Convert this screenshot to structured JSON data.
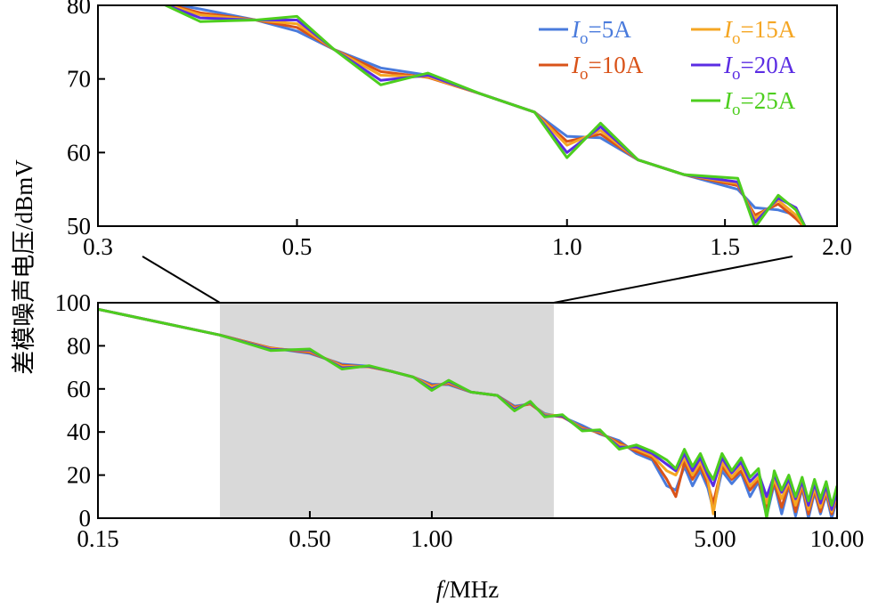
{
  "figure": {
    "ylabel": "差模噪声电压/dBmV",
    "xlabel_italic": "f",
    "xlabel_rest": "/MHz"
  },
  "chart_data": [
    {
      "id": "zoom",
      "type": "line",
      "xscale": "log",
      "xlim": [
        0.3,
        2.0
      ],
      "ylim": [
        50,
        80
      ],
      "x_ticks": [
        0.3,
        0.5,
        1.0,
        1.5,
        2.0
      ],
      "x_tick_labels": [
        "0.3",
        "0.5",
        "1.0",
        "1.5",
        "2.0"
      ],
      "y_ticks": [
        50,
        60,
        70,
        80
      ],
      "y_tick_labels": [
        "50",
        "60",
        "70",
        "80"
      ],
      "x": [
        0.35,
        0.39,
        0.45,
        0.5,
        0.55,
        0.62,
        0.7,
        0.8,
        0.92,
        1.0,
        1.09,
        1.2,
        1.35,
        1.55,
        1.62,
        1.72,
        1.8,
        1.85
      ],
      "series": [
        {
          "name": "5A",
          "color": "#4a7bdc",
          "values": [
            80.5,
            79.5,
            78,
            76.5,
            74,
            71.5,
            70.5,
            68,
            65.5,
            62.2,
            62,
            59,
            57,
            55,
            52.5,
            52.2,
            51.5,
            49.5
          ]
        },
        {
          "name": "10A",
          "color": "#d95319",
          "values": [
            80.5,
            79,
            78,
            77,
            74,
            71,
            70.2,
            68,
            65.5,
            61.5,
            62.5,
            59,
            57,
            55.5,
            51.5,
            53,
            51,
            49.5
          ]
        },
        {
          "name": "15A",
          "color": "#f5a623",
          "values": [
            80.5,
            78.7,
            78,
            77.5,
            74,
            70.5,
            70.3,
            68,
            65.5,
            61,
            63,
            59,
            57,
            55.8,
            51,
            53.5,
            51.5,
            49.5
          ]
        },
        {
          "name": "20A",
          "color": "#5b2de3",
          "values": [
            80.5,
            78.3,
            78,
            78,
            74,
            69.8,
            70.5,
            68,
            65.5,
            60,
            63.5,
            59,
            57,
            56,
            50.5,
            53.8,
            52.5,
            49.5
          ]
        },
        {
          "name": "25A",
          "color": "#4dce1e",
          "values": [
            80.5,
            77.8,
            78,
            78.5,
            74,
            69.2,
            70.8,
            68,
            65.5,
            59.3,
            64,
            59,
            57,
            56.5,
            49.8,
            54.2,
            52.2,
            49.5
          ]
        }
      ]
    },
    {
      "id": "full",
      "type": "line",
      "xscale": "log",
      "xlim": [
        0.15,
        10.0
      ],
      "ylim": [
        0,
        100
      ],
      "x_ticks": [
        0.15,
        0.5,
        1.0,
        5.0,
        10.0
      ],
      "x_tick_labels": [
        "0.15",
        "0.50",
        "1.00",
        "5.00",
        "10.00"
      ],
      "y_ticks": [
        0,
        20,
        40,
        60,
        80,
        100
      ],
      "y_tick_labels": [
        "0",
        "20",
        "40",
        "60",
        "80",
        "100"
      ],
      "highlight_range": [
        0.3,
        2.0
      ],
      "x": [
        0.15,
        0.2,
        0.3,
        0.4,
        0.5,
        0.6,
        0.7,
        0.8,
        0.9,
        1.0,
        1.1,
        1.25,
        1.45,
        1.6,
        1.75,
        1.9,
        2.1,
        2.35,
        2.6,
        2.9,
        3.2,
        3.5,
        3.8,
        4.0,
        4.2,
        4.4,
        4.6,
        4.8,
        4.95,
        5.2,
        5.5,
        5.8,
        6.1,
        6.4,
        6.7,
        7.0,
        7.3,
        7.6,
        7.9,
        8.2,
        8.5,
        8.8,
        9.1,
        9.4,
        9.7,
        10.0
      ],
      "series": [
        {
          "name": "5A",
          "color": "#4a7bdc",
          "values": [
            97,
            92,
            85,
            79,
            76.5,
            71.5,
            70.5,
            68,
            65.5,
            62.2,
            62,
            58.5,
            57,
            52,
            53,
            48.5,
            47,
            43,
            39,
            36,
            30,
            27,
            15,
            13,
            24,
            15,
            22,
            14,
            4,
            22,
            16,
            21,
            10,
            17,
            1,
            16,
            2,
            15,
            1,
            14,
            0,
            12,
            2,
            11,
            0,
            9
          ]
        },
        {
          "name": "10A",
          "color": "#d95319",
          "values": [
            97,
            92,
            85,
            79,
            77,
            71,
            70.2,
            68,
            65.5,
            61.5,
            62.5,
            58.5,
            57,
            51.5,
            53,
            48,
            47,
            42,
            39.5,
            35,
            31,
            28,
            18,
            10,
            26,
            18,
            24,
            16,
            7,
            24,
            18,
            22,
            13,
            18,
            4,
            17,
            5,
            16,
            3,
            15,
            2,
            13,
            3,
            12,
            2,
            10
          ]
        },
        {
          "name": "15A",
          "color": "#f5a623",
          "values": [
            97,
            92,
            85,
            78.7,
            77.5,
            70.5,
            70.3,
            68,
            65.5,
            61,
            63,
            58.5,
            57,
            51,
            53.5,
            48,
            47.5,
            41.5,
            40,
            34,
            32,
            29,
            22,
            20,
            28,
            20,
            26,
            18,
            2,
            26,
            19,
            24,
            15,
            19,
            7,
            18,
            9,
            17,
            6,
            16,
            4,
            14,
            5,
            13,
            3,
            11
          ]
        },
        {
          "name": "20A",
          "color": "#5b2de3",
          "values": [
            97,
            92,
            85,
            78.3,
            78,
            69.8,
            70.5,
            68,
            65.5,
            60,
            63.5,
            58.5,
            57,
            50.5,
            53.8,
            47.5,
            47.5,
            41,
            40.5,
            33,
            33,
            30,
            25,
            22,
            30,
            22,
            28,
            20,
            15,
            28,
            21,
            26,
            17,
            21,
            10,
            20,
            12,
            18,
            9,
            17,
            6,
            16,
            7,
            15,
            4,
            12
          ]
        },
        {
          "name": "25A",
          "color": "#4dce1e",
          "values": [
            97,
            92,
            85,
            77.8,
            78.5,
            69.2,
            70.8,
            68,
            65.5,
            59.3,
            64,
            58.5,
            57,
            49.8,
            54.2,
            47,
            48,
            40.5,
            41,
            32,
            34,
            31,
            27,
            23,
            32,
            24,
            30,
            22,
            18,
            30,
            22,
            28,
            19,
            23,
            0,
            22,
            13,
            20,
            10,
            19,
            8,
            18,
            9,
            17,
            6,
            15
          ]
        }
      ]
    }
  ],
  "legend": {
    "symbol": "I",
    "subscript": "o",
    "items": [
      {
        "text": "=5A",
        "color": "#4a7bdc"
      },
      {
        "text": "=15A",
        "color": "#f5a623"
      },
      {
        "text": "=10A",
        "color": "#d95319"
      },
      {
        "text": "=20A",
        "color": "#5b2de3"
      },
      {
        "text": "=25A",
        "color": "#4dce1e"
      }
    ]
  }
}
